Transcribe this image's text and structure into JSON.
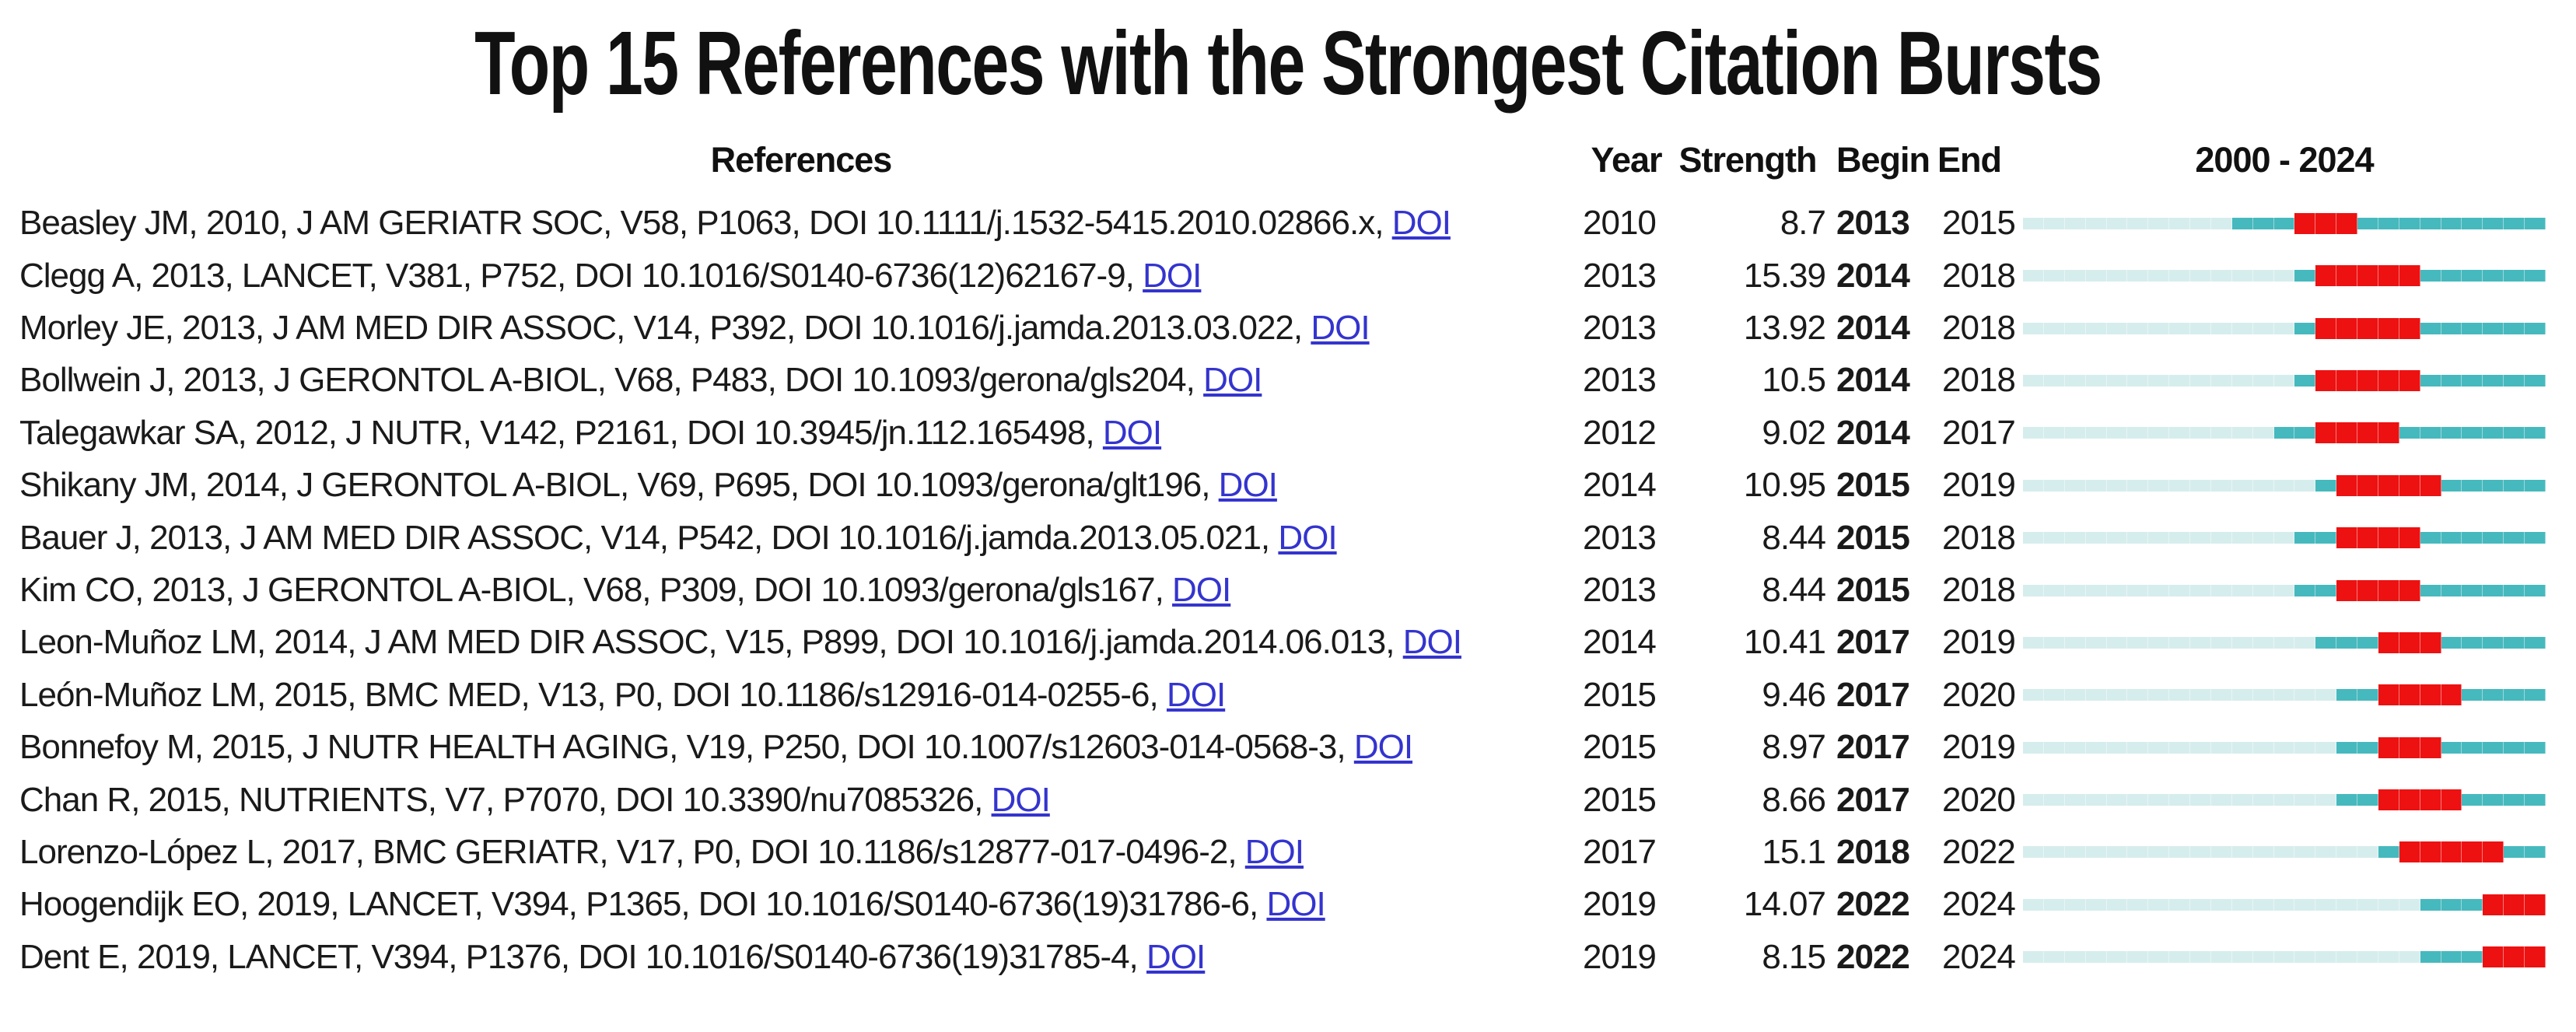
{
  "title": "Top 15 References with the Strongest Citation Bursts",
  "headers": {
    "references": "References",
    "year": "Year",
    "strength": "Strength",
    "begin": "Begin",
    "end": "End",
    "timeline": "2000 - 2024"
  },
  "colors": {
    "pale_segment": "#d6eded",
    "teal_segment": "#46b9be",
    "burst_segment": "#ed1111",
    "link": "#3434cf"
  },
  "chart_data": {
    "type": "table",
    "title": "Top 15 References with the Strongest Citation Bursts",
    "columns": [
      "References",
      "Year",
      "Strength",
      "Begin",
      "End",
      "2000 - 2024"
    ],
    "timeline_range": [
      2000,
      2024
    ],
    "segment_legend": {
      "pre": "years before publication (pale cyan)",
      "active": "years published, outside burst (teal)",
      "burst": "burst years Begin–End inclusive (red)"
    },
    "rows": [
      {
        "reference": "Beasley JM, 2010, J AM GERIATR SOC, V58, P1063, DOI 10.1111/j.1532-5415.2010.02866.x,",
        "doi_link": "DOI",
        "year": 2010,
        "strength": "8.7",
        "begin": 2013,
        "end": 2015
      },
      {
        "reference": "Clegg A, 2013, LANCET, V381, P752, DOI 10.1016/S0140-6736(12)62167-9,",
        "doi_link": "DOI",
        "year": 2013,
        "strength": "15.39",
        "begin": 2014,
        "end": 2018
      },
      {
        "reference": "Morley JE, 2013, J AM MED DIR ASSOC, V14, P392, DOI 10.1016/j.jamda.2013.03.022,",
        "doi_link": "DOI",
        "year": 2013,
        "strength": "13.92",
        "begin": 2014,
        "end": 2018
      },
      {
        "reference": "Bollwein J, 2013, J GERONTOL A-BIOL, V68, P483, DOI 10.1093/gerona/gls204,",
        "doi_link": "DOI",
        "year": 2013,
        "strength": "10.5",
        "begin": 2014,
        "end": 2018
      },
      {
        "reference": "Talegawkar SA, 2012, J NUTR, V142, P2161, DOI 10.3945/jn.112.165498,",
        "doi_link": "DOI",
        "year": 2012,
        "strength": "9.02",
        "begin": 2014,
        "end": 2017
      },
      {
        "reference": "Shikany JM, 2014, J GERONTOL A-BIOL, V69, P695, DOI 10.1093/gerona/glt196,",
        "doi_link": "DOI",
        "year": 2014,
        "strength": "10.95",
        "begin": 2015,
        "end": 2019
      },
      {
        "reference": "Bauer J, 2013, J AM MED DIR ASSOC, V14, P542, DOI 10.1016/j.jamda.2013.05.021,",
        "doi_link": "DOI",
        "year": 2013,
        "strength": "8.44",
        "begin": 2015,
        "end": 2018
      },
      {
        "reference": "Kim CO, 2013, J GERONTOL A-BIOL, V68, P309, DOI 10.1093/gerona/gls167,",
        "doi_link": "DOI",
        "year": 2013,
        "strength": "8.44",
        "begin": 2015,
        "end": 2018
      },
      {
        "reference": "Leon-Muñoz LM, 2014, J AM MED DIR ASSOC, V15, P899, DOI 10.1016/j.jamda.2014.06.013,",
        "doi_link": "DOI",
        "year": 2014,
        "strength": "10.41",
        "begin": 2017,
        "end": 2019
      },
      {
        "reference": "León-Muñoz LM, 2015, BMC MED, V13, P0, DOI 10.1186/s12916-014-0255-6,",
        "doi_link": "DOI",
        "year": 2015,
        "strength": "9.46",
        "begin": 2017,
        "end": 2020
      },
      {
        "reference": "Bonnefoy M, 2015, J NUTR HEALTH AGING, V19, P250, DOI 10.1007/s12603-014-0568-3,",
        "doi_link": "DOI",
        "year": 2015,
        "strength": "8.97",
        "begin": 2017,
        "end": 2019
      },
      {
        "reference": "Chan R, 2015, NUTRIENTS, V7, P7070, DOI 10.3390/nu7085326,",
        "doi_link": "DOI",
        "year": 2015,
        "strength": "8.66",
        "begin": 2017,
        "end": 2020
      },
      {
        "reference": "Lorenzo-López L, 2017, BMC GERIATR, V17, P0, DOI 10.1186/s12877-017-0496-2,",
        "doi_link": "DOI",
        "year": 2017,
        "strength": "15.1",
        "begin": 2018,
        "end": 2022
      },
      {
        "reference": "Hoogendijk EO, 2019, LANCET, V394, P1365, DOI 10.1016/S0140-6736(19)31786-6,",
        "doi_link": "DOI",
        "year": 2019,
        "strength": "14.07",
        "begin": 2022,
        "end": 2024
      },
      {
        "reference": "Dent E, 2019, LANCET, V394, P1376, DOI 10.1016/S0140-6736(19)31785-4,",
        "doi_link": "DOI",
        "year": 2019,
        "strength": "8.15",
        "begin": 2022,
        "end": 2024
      }
    ]
  }
}
